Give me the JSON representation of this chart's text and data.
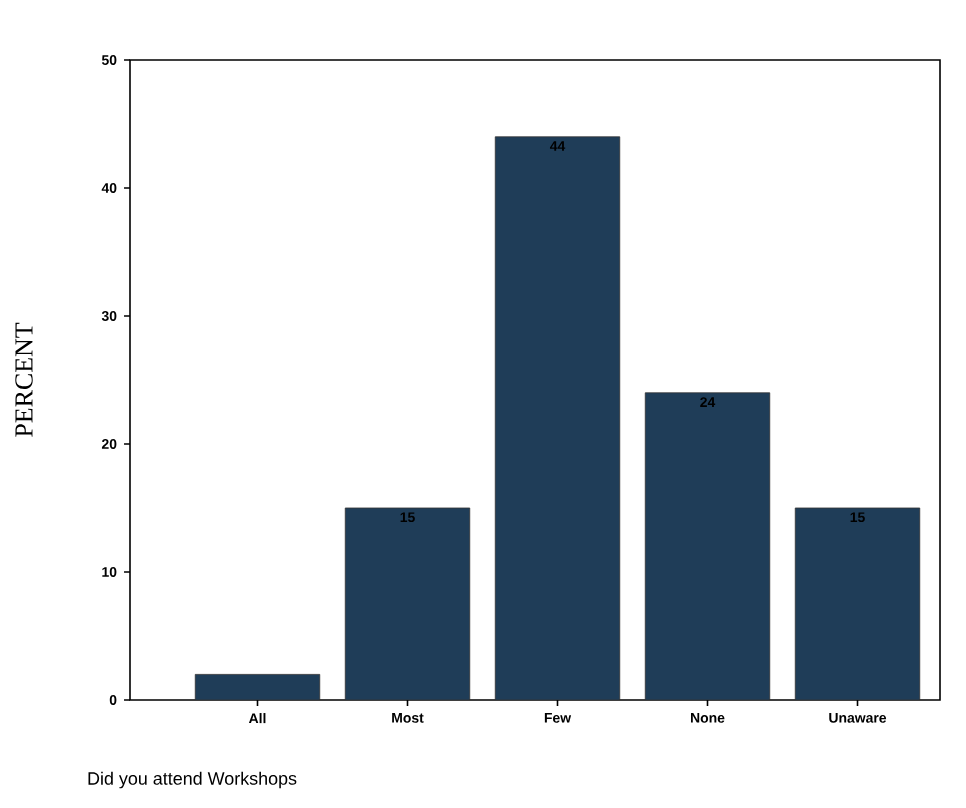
{
  "chart_data": {
    "type": "bar",
    "categories": [
      "All",
      "Most",
      "Few",
      "None",
      "Unaware"
    ],
    "values": [
      2,
      15,
      44,
      24,
      15
    ],
    "value_labels": [
      null,
      "15",
      "44",
      "24",
      "15"
    ],
    "color": "#1f3d58",
    "ylim": [
      0,
      50
    ],
    "yticks": [
      0,
      10,
      20,
      30,
      40,
      50
    ],
    "ylabel": "PERCENT",
    "xlabel": "Did you attend Workshops"
  }
}
